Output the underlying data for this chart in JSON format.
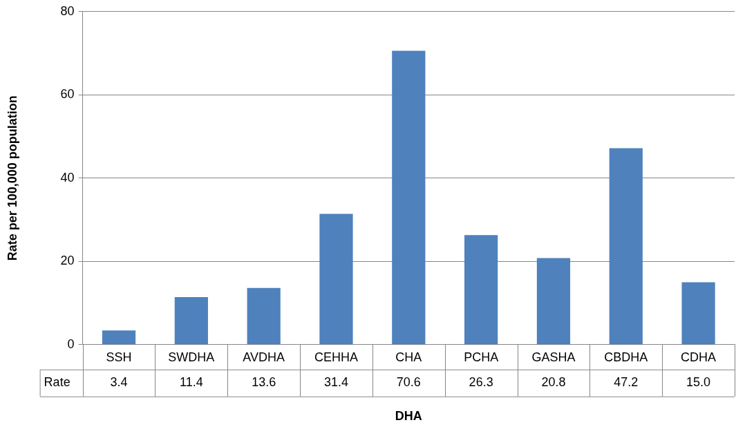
{
  "chart_data": {
    "type": "bar",
    "xlabel": "DHA",
    "ylabel": "Rate per 100,000 population",
    "categories": [
      "SSH",
      "SWDHA",
      "AVDHA",
      "CEHHA",
      "CHA",
      "PCHA",
      "GASHA",
      "CBDHA",
      "CDHA"
    ],
    "series": [
      {
        "name": "Rate",
        "color": "#4f81bd",
        "values": [
          3.4,
          11.4,
          13.6,
          31.4,
          70.6,
          26.3,
          20.8,
          47.2,
          15.0
        ],
        "value_labels": [
          "3.4",
          "11.4",
          "13.6",
          "31.4",
          "70.6",
          "26.3",
          "20.8",
          "47.2",
          "15.0"
        ]
      }
    ],
    "ylim": [
      0,
      80
    ],
    "yticks": [
      0,
      20,
      40,
      60,
      80
    ],
    "grid": "y",
    "legend": false
  }
}
